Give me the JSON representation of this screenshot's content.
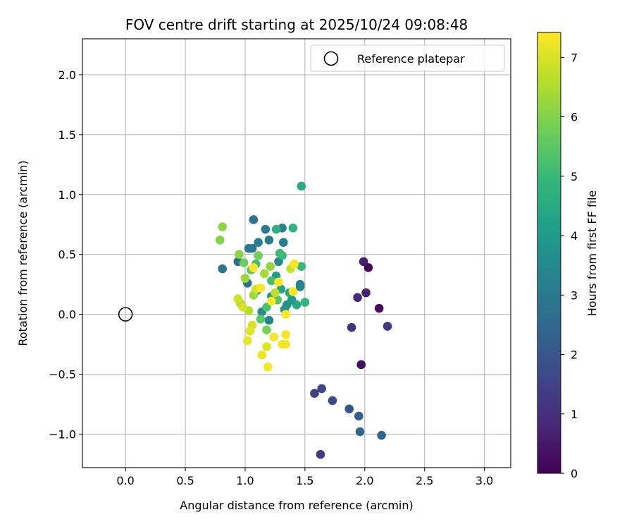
{
  "chart_data": {
    "type": "scatter",
    "title": "FOV centre drift starting at 2025/10/24 09:08:48",
    "xlabel": "Angular distance from reference (arcmin)",
    "ylabel": "Rotation from reference (arcmin)",
    "xlim": [
      -0.36,
      3.22
    ],
    "ylim": [
      -1.28,
      2.3
    ],
    "xticks": [
      "0.0",
      "0.5",
      "1.0",
      "1.5",
      "2.0",
      "2.5",
      "3.0"
    ],
    "xtick_values": [
      0,
      0.5,
      1.0,
      1.5,
      2.0,
      2.5,
      3.0
    ],
    "yticks": [
      "−1.0",
      "−0.5",
      "0.0",
      "0.5",
      "1.0",
      "1.5",
      "2.0"
    ],
    "ytick_values": [
      -1.0,
      -0.5,
      0,
      0.5,
      1.0,
      1.5,
      2.0
    ],
    "grid": true,
    "legend": {
      "label": "Reference platepar",
      "location": "upper right"
    },
    "reference_point": {
      "x": 0.0,
      "y": 0.0
    },
    "colorbar": {
      "label": "Hours from first FF file",
      "range": [
        0,
        7.42
      ],
      "ticks": [
        "0",
        "1",
        "2",
        "3",
        "4",
        "5",
        "6",
        "7"
      ],
      "tick_values": [
        0,
        1,
        2,
        3,
        4,
        5,
        6,
        7
      ],
      "colormap": "viridis",
      "colormap_stops": [
        "#440154",
        "#482878",
        "#3e4989",
        "#31688e",
        "#26828e",
        "#1f9e89",
        "#35b779",
        "#6ece58",
        "#b5de2b",
        "#fde725"
      ]
    },
    "points": [
      {
        "x": 2.03,
        "y": 0.39,
        "t": 0.1
      },
      {
        "x": 2.12,
        "y": 0.05,
        "t": 0.2
      },
      {
        "x": 1.97,
        "y": -0.42,
        "t": 0.3
      },
      {
        "x": 1.99,
        "y": 0.44,
        "t": 0.6
      },
      {
        "x": 2.01,
        "y": 0.18,
        "t": 0.7
      },
      {
        "x": 1.94,
        "y": 0.14,
        "t": 0.9
      },
      {
        "x": 1.89,
        "y": -0.11,
        "t": 1.1
      },
      {
        "x": 2.19,
        "y": -0.1,
        "t": 1.2
      },
      {
        "x": 1.63,
        "y": -1.17,
        "t": 1.3
      },
      {
        "x": 1.58,
        "y": -0.66,
        "t": 1.4
      },
      {
        "x": 1.64,
        "y": -0.62,
        "t": 1.55
      },
      {
        "x": 1.73,
        "y": -0.72,
        "t": 1.7
      },
      {
        "x": 1.87,
        "y": -0.79,
        "t": 2.0
      },
      {
        "x": 1.95,
        "y": -0.85,
        "t": 2.2
      },
      {
        "x": 2.14,
        "y": -1.01,
        "t": 2.4
      },
      {
        "x": 1.96,
        "y": -0.98,
        "t": 2.5
      },
      {
        "x": 0.94,
        "y": 0.44,
        "t": 2.7
      },
      {
        "x": 1.07,
        "y": 0.79,
        "t": 2.8
      },
      {
        "x": 1.02,
        "y": 0.26,
        "t": 2.8
      },
      {
        "x": 0.81,
        "y": 0.38,
        "t": 2.9
      },
      {
        "x": 1.03,
        "y": 0.55,
        "t": 3.0
      },
      {
        "x": 1.06,
        "y": 0.55,
        "t": 3.0
      },
      {
        "x": 1.17,
        "y": 0.71,
        "t": 3.1
      },
      {
        "x": 1.2,
        "y": 0.62,
        "t": 3.1
      },
      {
        "x": 1.11,
        "y": 0.6,
        "t": 3.2
      },
      {
        "x": 1.32,
        "y": 0.6,
        "t": 3.2
      },
      {
        "x": 1.31,
        "y": 0.72,
        "t": 3.3
      },
      {
        "x": 1.46,
        "y": 0.25,
        "t": 3.3
      },
      {
        "x": 1.46,
        "y": 0.23,
        "t": 3.4
      },
      {
        "x": 1.2,
        "y": -0.05,
        "t": 3.4
      },
      {
        "x": 1.28,
        "y": 0.44,
        "t": 3.5
      },
      {
        "x": 1.14,
        "y": 0.02,
        "t": 3.6
      },
      {
        "x": 1.33,
        "y": 0.04,
        "t": 3.7
      },
      {
        "x": 1.35,
        "y": 0.08,
        "t": 3.8
      },
      {
        "x": 1.22,
        "y": 0.15,
        "t": 3.9
      },
      {
        "x": 1.39,
        "y": 0.12,
        "t": 4.0
      },
      {
        "x": 1.26,
        "y": 0.32,
        "t": 4.1
      },
      {
        "x": 1.1,
        "y": 0.2,
        "t": 4.2
      },
      {
        "x": 1.3,
        "y": 0.21,
        "t": 4.3
      },
      {
        "x": 1.43,
        "y": 0.08,
        "t": 4.4
      },
      {
        "x": 1.37,
        "y": 0.18,
        "t": 4.5
      },
      {
        "x": 1.47,
        "y": 1.07,
        "t": 4.6
      },
      {
        "x": 1.26,
        "y": 0.71,
        "t": 4.7
      },
      {
        "x": 1.4,
        "y": 0.72,
        "t": 4.8
      },
      {
        "x": 1.5,
        "y": 0.1,
        "t": 4.9
      },
      {
        "x": 1.47,
        "y": 0.4,
        "t": 5.0
      },
      {
        "x": 1.31,
        "y": 0.49,
        "t": 5.0
      },
      {
        "x": 1.29,
        "y": 0.51,
        "t": 5.1
      },
      {
        "x": 1.09,
        "y": 0.42,
        "t": 5.1
      },
      {
        "x": 1.22,
        "y": 0.28,
        "t": 5.2
      },
      {
        "x": 1.18,
        "y": 0.06,
        "t": 5.3
      },
      {
        "x": 1.27,
        "y": 0.12,
        "t": 5.4
      },
      {
        "x": 1.13,
        "y": -0.04,
        "t": 5.5
      },
      {
        "x": 1.05,
        "y": 0.37,
        "t": 5.6
      },
      {
        "x": 0.99,
        "y": 0.43,
        "t": 5.7
      },
      {
        "x": 1.11,
        "y": 0.49,
        "t": 5.8
      },
      {
        "x": 1.18,
        "y": -0.13,
        "t": 5.9
      },
      {
        "x": 0.79,
        "y": 0.62,
        "t": 6.0
      },
      {
        "x": 0.81,
        "y": 0.73,
        "t": 6.1
      },
      {
        "x": 0.95,
        "y": 0.5,
        "t": 6.1
      },
      {
        "x": 1.21,
        "y": 0.4,
        "t": 6.2
      },
      {
        "x": 1.0,
        "y": 0.3,
        "t": 6.3
      },
      {
        "x": 1.07,
        "y": 0.16,
        "t": 6.3
      },
      {
        "x": 1.16,
        "y": 0.34,
        "t": 6.4
      },
      {
        "x": 0.96,
        "y": 0.09,
        "t": 6.5
      },
      {
        "x": 1.03,
        "y": 0.03,
        "t": 6.6
      },
      {
        "x": 1.25,
        "y": 0.18,
        "t": 6.7
      },
      {
        "x": 1.38,
        "y": 0.38,
        "t": 6.8
      },
      {
        "x": 1.09,
        "y": 0.21,
        "t": 6.9
      },
      {
        "x": 0.94,
        "y": 0.13,
        "t": 6.9
      },
      {
        "x": 0.98,
        "y": 0.06,
        "t": 7.0
      },
      {
        "x": 1.06,
        "y": -0.09,
        "t": 7.0
      },
      {
        "x": 1.04,
        "y": -0.14,
        "t": 7.1
      },
      {
        "x": 1.18,
        "y": -0.27,
        "t": 7.1
      },
      {
        "x": 1.14,
        "y": -0.34,
        "t": 7.2
      },
      {
        "x": 1.02,
        "y": -0.22,
        "t": 7.2
      },
      {
        "x": 1.19,
        "y": -0.44,
        "t": 7.3
      },
      {
        "x": 1.24,
        "y": -0.19,
        "t": 7.3
      },
      {
        "x": 1.31,
        "y": -0.25,
        "t": 7.3
      },
      {
        "x": 1.34,
        "y": -0.25,
        "t": 7.3
      },
      {
        "x": 1.34,
        "y": -0.17,
        "t": 7.35
      },
      {
        "x": 1.41,
        "y": 0.42,
        "t": 7.35
      },
      {
        "x": 1.4,
        "y": 0.19,
        "t": 7.35
      },
      {
        "x": 1.34,
        "y": 0.0,
        "t": 7.4
      },
      {
        "x": 1.22,
        "y": 0.11,
        "t": 7.4
      },
      {
        "x": 1.28,
        "y": 0.27,
        "t": 7.4
      },
      {
        "x": 1.07,
        "y": 0.39,
        "t": 7.4
      },
      {
        "x": 1.13,
        "y": 0.22,
        "t": 7.4
      }
    ]
  }
}
